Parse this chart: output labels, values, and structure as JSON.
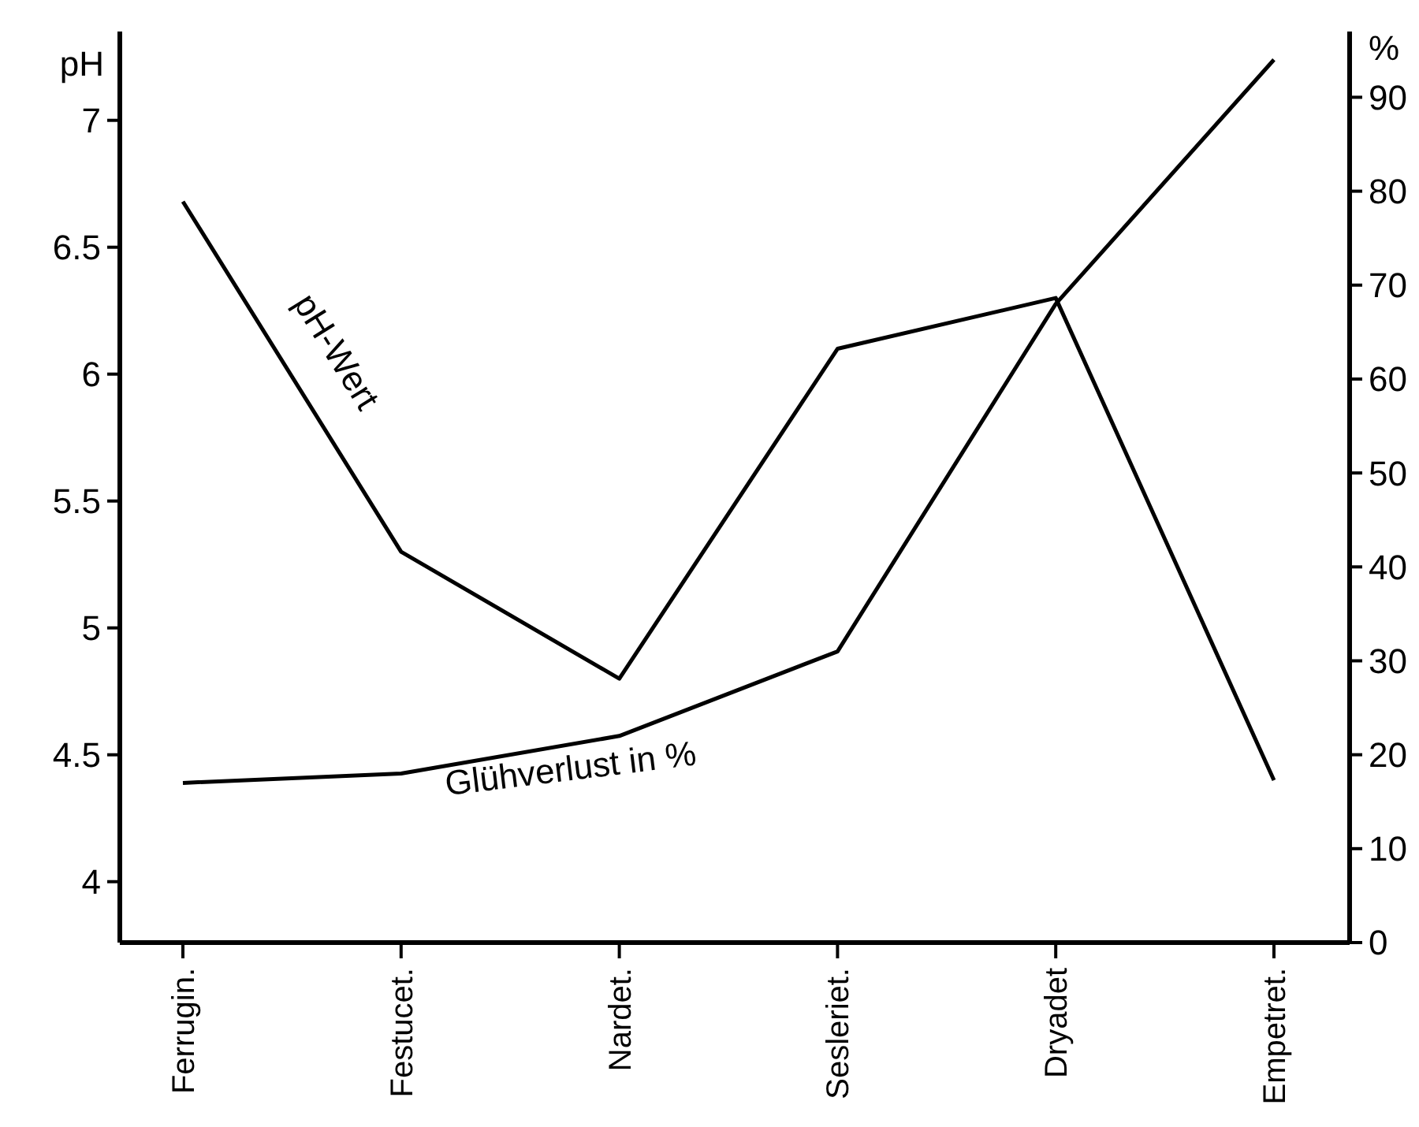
{
  "chart_data": {
    "type": "line",
    "ylabel": "pH",
    "y2label": "%",
    "categories": [
      "Ferrugin.",
      "Festucet.",
      "Nardet.",
      "Sesleriet.",
      "Dryadet",
      "Empetret."
    ],
    "ylim": [
      3.76,
      7.35
    ],
    "yticks": [
      4,
      4.5,
      5,
      5.5,
      6,
      6.5,
      7
    ],
    "y2lim": [
      0,
      97
    ],
    "y2ticks": [
      0,
      10,
      20,
      30,
      40,
      50,
      60,
      70,
      80,
      90
    ],
    "series": [
      {
        "name": "pH-Wert",
        "color": "#000000",
        "values": [
          6.68,
          5.3,
          4.8,
          6.1,
          6.3,
          4.4
        ]
      },
      {
        "name": "Glühverlust in %",
        "color": "#000000",
        "axis": "y2",
        "values": [
          17,
          18,
          22,
          31,
          68,
          94
        ]
      }
    ],
    "grid": false,
    "line_style": "solid"
  }
}
